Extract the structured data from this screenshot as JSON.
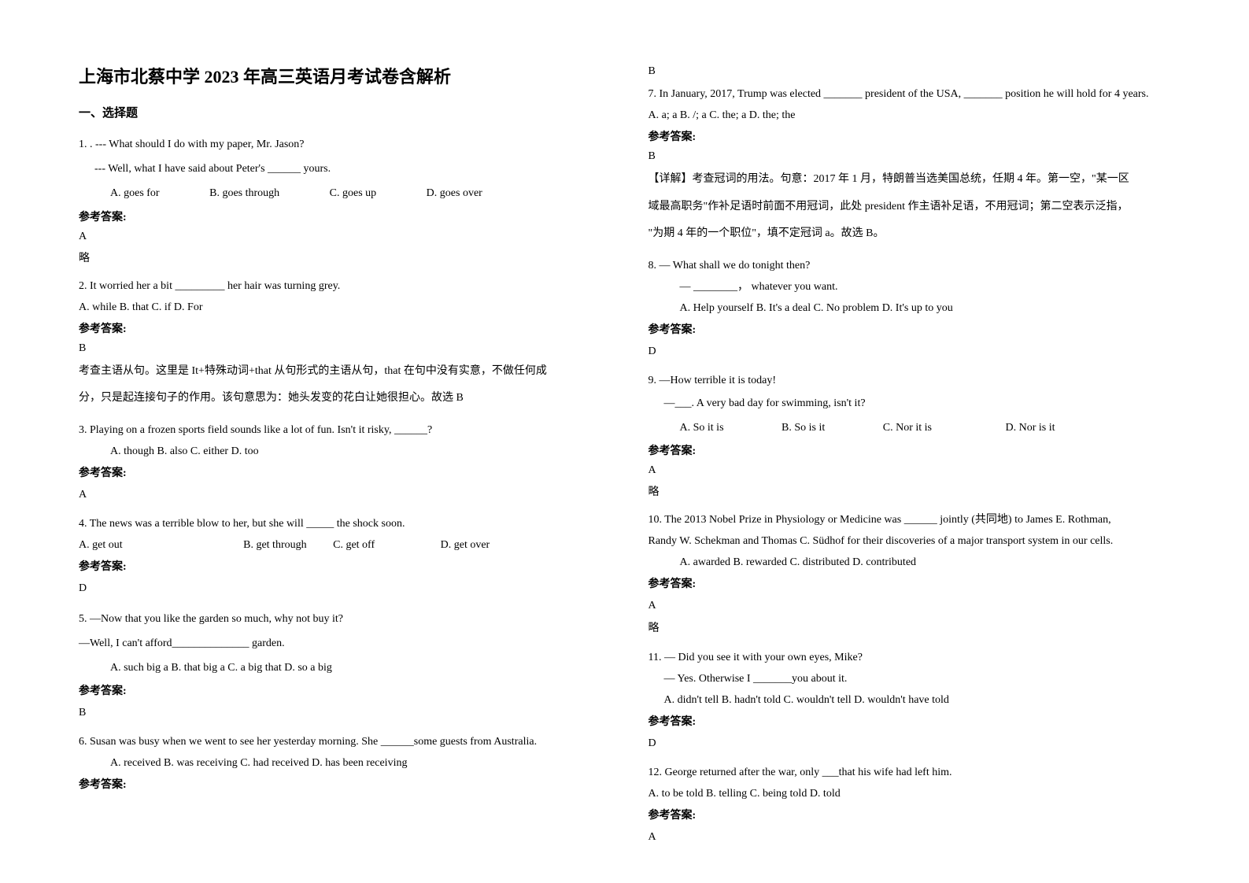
{
  "title": "上海市北蔡中学 2023 年高三英语月考试卷含解析",
  "section1": "一、选择题",
  "answer_label": "参考答案:",
  "omit": "略",
  "col1": {
    "q1": {
      "line1": "1. . --- What should I do with my paper, Mr. Jason?",
      "line2": "--- Well, what I have said about Peter's ______ yours.",
      "optA": "A. goes for",
      "optB": "B. goes through",
      "optC": "C. goes up",
      "optD": "D. goes over",
      "answer": "A"
    },
    "q2": {
      "line1": "2. It worried her a bit _________ her hair was turning grey.",
      "opts": "A. while     B. that   C. if    D. For",
      "answer": "B",
      "exp1": "考查主语从句。这里是 It+特殊动词+that 从句形式的主语从句，that 在句中没有实意，不做任何成",
      "exp2": "分，只是起连接句子的作用。该句意思为：她头发变的花白让她很担心。故选 B"
    },
    "q3": {
      "line1": "3. Playing on a frozen sports field sounds like a lot of fun. Isn't it risky, ______?",
      "opts": "A. though       B. also       C. either       D. too",
      "answer": "A"
    },
    "q4": {
      "line1": "4. The news was a terrible blow to her, but she will _____ the shock soon.",
      "optA": "A. get out",
      "optB": "B. get through",
      "optC": "C. get off",
      "optD": "D. get over",
      "answer": "D"
    },
    "q5": {
      "line1": "5. —Now that you like the garden so much, why not buy it?",
      "line2": "—Well, I can't afford______________ garden.",
      "opts": "A. such big a    B. that big a    C. a big that    D. so a big",
      "answer": "B"
    },
    "q6": {
      "line1": "6.       Susan was busy when we went to see her yesterday morning. She ______some guests from Australia.",
      "opts": "A. received         B. was receiving   C. had received   D. has been receiving"
    }
  },
  "col2": {
    "q6": {
      "answer": "B"
    },
    "q7": {
      "line1": "7. In January, 2017, Trump was elected _______ president of the USA, _______ position he will hold for 4 years.",
      "opts": "A. a; a    B. /; a    C. the; a    D. the; the",
      "answer": "B",
      "exp1": "【详解】考查冠词的用法。句意：2017 年 1 月，特朗普当选美国总统，任期 4 年。第一空，\"某一区",
      "exp2": "域最高职务\"作补足语时前面不用冠词，此处 president 作主语补足语，不用冠词；第二空表示泛指，",
      "exp3": "\"为期 4 年的一个职位\"，填不定冠词 a。故选 B。"
    },
    "q8": {
      "line1": "8. — What shall we do tonight then?",
      "line2": "— ________，  whatever you want.",
      "opts": "A. Help yourself   B. It's a deal   C. No problem    D. It's up to you",
      "answer": "D"
    },
    "q9": {
      "line1": "9. —How terrible it is today!",
      "line2": "—___. A very bad day for swimming, isn't it?",
      "optA": "A. So it is",
      "optB": "B. So is it",
      "optC": "C. Nor it is",
      "optD": "D. Nor is it",
      "answer": "A"
    },
    "q10": {
      "line1": "10. The 2013 Nobel Prize in Physiology or Medicine was ______ jointly (共同地) to James E. Rothman,",
      "line2": "Randy W. Schekman and Thomas C. Südhof for their discoveries of a major transport system in our cells.",
      "opts": "A. awarded          B. rewarded               C. distributed             D. contributed",
      "answer": "A"
    },
    "q11": {
      "line1": "11. — Did you see it with your own eyes, Mike?",
      "line2": "— Yes. Otherwise I _______you about it.",
      "opts": "A. didn't tell           B. hadn't told    C. wouldn't tell     D. wouldn't have told",
      "answer": "D"
    },
    "q12": {
      "line1": "12. George returned after the war, only ___that his wife had left him.",
      "opts": "A. to be told   B. telling   C. being told   D. told",
      "answer": "A"
    }
  }
}
